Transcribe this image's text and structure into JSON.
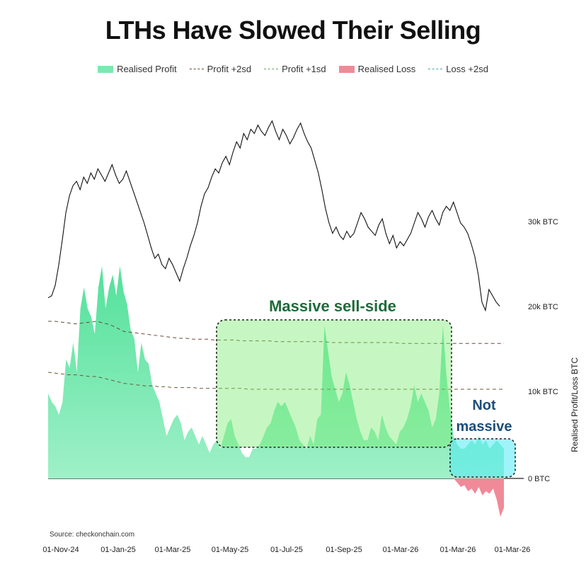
{
  "chart_data": {
    "type": "area",
    "title": "LTHs Have Slowed Their Selling",
    "legend": [
      {
        "label": "Realised Profit",
        "kind": "fill",
        "color": "#7ee8b0"
      },
      {
        "label": "Profit +2sd",
        "kind": "dash",
        "color": "#6b4a3a"
      },
      {
        "label": "Profit +1sd",
        "kind": "dash",
        "color": "#6aa36a"
      },
      {
        "label": "Realised Loss",
        "kind": "fill",
        "color": "#f08a98"
      },
      {
        "label": "Loss +2sd",
        "kind": "dash",
        "color": "#3bb0a0"
      }
    ],
    "ylabel": "Realised Profit/Loss BTC",
    "y_ticks": [
      "0 BTC",
      "10k BTC",
      "20k BTC",
      "30k BTC"
    ],
    "y_tick_values": [
      0,
      10000,
      20000,
      30000
    ],
    "ylim": [
      -5000,
      42000
    ],
    "x_tick_labels": [
      "01-Nov-24",
      "01-Jan-25",
      "01-Mar-25",
      "01-May-25",
      "01-Jul-25",
      "01-Sep-25",
      "01-Mar-26",
      "01-Mar-26",
      "01-Mar-26"
    ],
    "x_count": 128,
    "annotations": [
      "Massive sell-side",
      "Not massive"
    ],
    "source": "Source: checkonchain.com",
    "realised_profit": [
      10000,
      9000,
      8500,
      7500,
      9000,
      14000,
      13000,
      16000,
      12500,
      20000,
      22500,
      20000,
      19000,
      17000,
      22500,
      25000,
      20000,
      22500,
      24000,
      21500,
      25000,
      22000,
      20500,
      17500,
      16500,
      12500,
      16000,
      14000,
      13500,
      11000,
      10000,
      9000,
      7000,
      5000,
      6000,
      7000,
      7500,
      6500,
      4500,
      5500,
      6000,
      5000,
      4000,
      5000,
      4000,
      3000,
      4000,
      4500,
      3500,
      5000,
      6500,
      7000,
      5000,
      4000,
      3000,
      2500,
      2500,
      3500,
      3500,
      4000,
      5000,
      6000,
      6500,
      8000,
      9000,
      8500,
      9000,
      8000,
      7000,
      6000,
      4500,
      4000,
      3500,
      5000,
      4000,
      7000,
      7500,
      18000,
      15000,
      12000,
      10500,
      9000,
      10000,
      12500,
      11000,
      9000,
      7000,
      5500,
      4500,
      4500,
      6000,
      5500,
      4500,
      7500,
      6000,
      5000,
      4500,
      4000,
      5500,
      6000,
      7000,
      8500,
      11000,
      9000,
      10000,
      9000,
      8000,
      6000,
      7000,
      10000,
      18000,
      12000,
      8000,
      5000,
      4000,
      3500,
      3500,
      4000,
      4500,
      4000,
      5000,
      4000,
      4500,
      3500,
      4000,
      4500,
      4000,
      3500
    ],
    "realised_loss": [
      0,
      0,
      0,
      0,
      0,
      0,
      0,
      0,
      0,
      0,
      0,
      0,
      0,
      0,
      0,
      0,
      0,
      0,
      0,
      0,
      0,
      0,
      0,
      0,
      0,
      0,
      0,
      0,
      0,
      0,
      0,
      0,
      0,
      0,
      0,
      0,
      0,
      0,
      0,
      0,
      0,
      0,
      0,
      0,
      0,
      0,
      0,
      0,
      0,
      0,
      0,
      0,
      0,
      0,
      0,
      0,
      0,
      0,
      0,
      0,
      0,
      0,
      0,
      0,
      0,
      0,
      0,
      0,
      0,
      0,
      0,
      0,
      0,
      0,
      0,
      0,
      0,
      0,
      0,
      0,
      0,
      0,
      0,
      0,
      0,
      0,
      0,
      0,
      0,
      0,
      0,
      0,
      0,
      0,
      0,
      0,
      0,
      0,
      0,
      0,
      0,
      0,
      0,
      0,
      0,
      0,
      0,
      0,
      0,
      0,
      0,
      0,
      0,
      0,
      -500,
      -1000,
      -800,
      -1500,
      -1200,
      -1800,
      -1000,
      -2000,
      -1500,
      -1800,
      -1200,
      -2500,
      -4500,
      -3500
    ],
    "profit_2sd": [
      18500,
      18500,
      18400,
      18300,
      18200,
      18300,
      18400,
      18500,
      18300,
      18100,
      17700,
      17300,
      17200,
      17100,
      17000,
      16900,
      16800,
      16700,
      16600,
      16500,
      16500,
      16400,
      16400,
      16400,
      16300,
      16300,
      16300,
      16300,
      16200,
      16200,
      16200,
      16200,
      16200,
      16100,
      16100,
      16100,
      16100,
      16100,
      16100,
      16100,
      16100,
      16000,
      16000,
      16000,
      16000,
      16000,
      16000,
      16000,
      16000,
      16000,
      16000,
      15900,
      15900,
      15900,
      15900,
      15900,
      15900,
      15900,
      15900,
      15900,
      15900,
      15900,
      15900,
      15900,
      15900,
      15900,
      15900
    ],
    "profit_1sd": [
      12500,
      12400,
      12300,
      12200,
      12200,
      12100,
      12000,
      12000,
      11800,
      11600,
      11400,
      11200,
      11100,
      11000,
      10900,
      10900,
      10800,
      10800,
      10700,
      10700,
      10700,
      10700,
      10600,
      10600,
      10600,
      10600,
      10600,
      10600,
      10600,
      10500,
      10500,
      10500,
      10500,
      10500,
      10500,
      10500,
      10500,
      10500,
      10500,
      10500,
      10500,
      10500,
      10500,
      10500,
      10500,
      10500,
      10500,
      10500,
      10500,
      10500,
      10500,
      10500,
      10500,
      10500,
      10500,
      10500,
      10500,
      10500,
      10500,
      10500,
      10500,
      10500,
      10500,
      10500,
      10500,
      10500,
      10500
    ],
    "price_line": [
      0.14,
      0.15,
      0.2,
      0.3,
      0.42,
      0.55,
      0.63,
      0.68,
      0.7,
      0.66,
      0.72,
      0.69,
      0.74,
      0.71,
      0.76,
      0.73,
      0.7,
      0.74,
      0.78,
      0.73,
      0.69,
      0.71,
      0.75,
      0.7,
      0.65,
      0.6,
      0.55,
      0.5,
      0.44,
      0.38,
      0.33,
      0.35,
      0.3,
      0.28,
      0.33,
      0.3,
      0.26,
      0.22,
      0.28,
      0.33,
      0.39,
      0.44,
      0.5,
      0.58,
      0.64,
      0.67,
      0.72,
      0.76,
      0.74,
      0.79,
      0.82,
      0.78,
      0.84,
      0.89,
      0.86,
      0.93,
      0.9,
      0.95,
      0.93,
      0.97,
      0.94,
      0.92,
      0.96,
      0.99,
      0.94,
      0.9,
      0.95,
      0.92,
      0.88,
      0.91,
      0.95,
      0.98,
      0.93,
      0.89,
      0.86,
      0.8,
      0.74,
      0.66,
      0.57,
      0.5,
      0.45,
      0.48,
      0.44,
      0.42,
      0.46,
      0.43,
      0.45,
      0.5,
      0.55,
      0.52,
      0.48,
      0.46,
      0.44,
      0.49,
      0.52,
      0.45,
      0.4,
      0.44,
      0.38,
      0.41,
      0.39,
      0.42,
      0.45,
      0.5,
      0.55,
      0.52,
      0.48,
      0.53,
      0.56,
      0.52,
      0.49,
      0.55,
      0.58,
      0.56,
      0.6,
      0.55,
      0.5,
      0.48,
      0.45,
      0.4,
      0.34,
      0.25,
      0.12,
      0.08,
      0.18,
      0.15,
      0.12,
      0.1
    ]
  }
}
